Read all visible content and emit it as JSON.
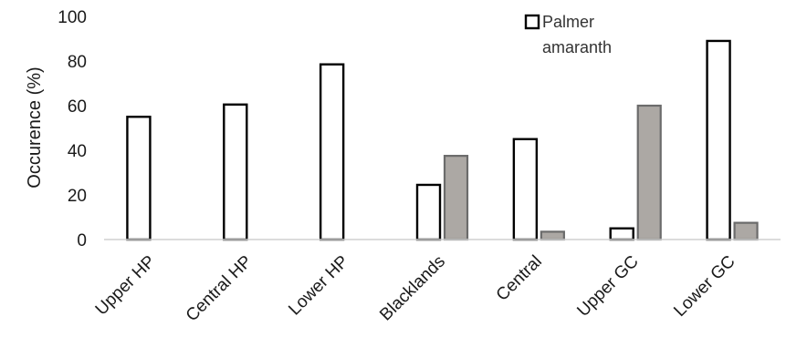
{
  "chart_data": {
    "type": "bar",
    "title": "",
    "xlabel": "",
    "ylabel": "Occurence (%)",
    "ylim": [
      0,
      100
    ],
    "yticks": [
      "0",
      "20",
      "40",
      "60",
      "80",
      "100"
    ],
    "grid": false,
    "legend_position": "top-right",
    "categories": [
      "Upper HP",
      "Central HP",
      "Lower HP",
      "Blacklands",
      "Central",
      "Upper GC",
      "Lower GC"
    ],
    "series": [
      {
        "name": "Palmer amaranth",
        "name_lines": [
          "Palmer",
          "amaranth"
        ],
        "color": "#ffffff",
        "stroke": "#000000",
        "values": [
          55,
          60.5,
          78.5,
          24.5,
          45,
          5,
          89
        ]
      },
      {
        "color": "#aca8a4",
        "stroke": "#6b6b6b",
        "values": [
          0,
          0,
          0,
          37.5,
          3.5,
          60,
          7.5
        ]
      }
    ]
  }
}
